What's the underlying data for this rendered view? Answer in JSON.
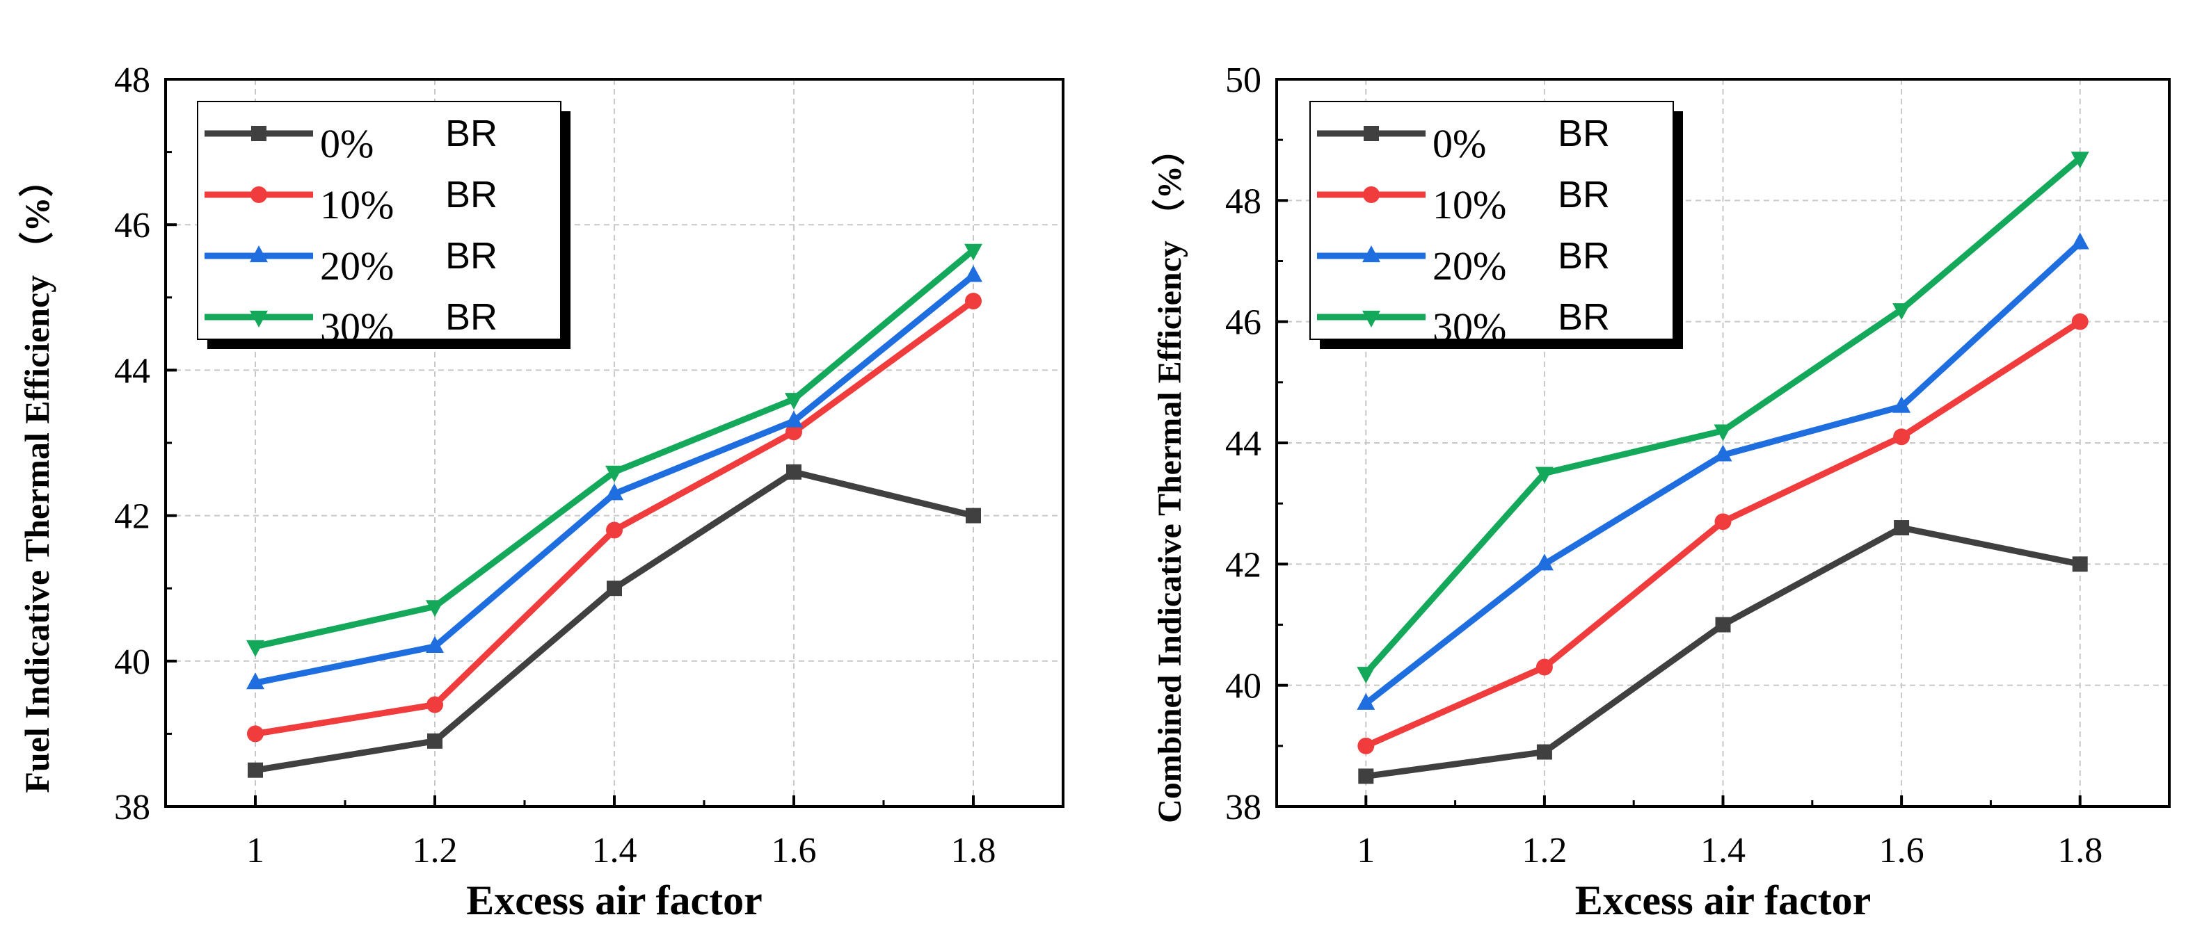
{
  "colors": {
    "series": [
      "#404040",
      "#f03c3c",
      "#1f6ee0",
      "#14a85a"
    ],
    "grid": "#c8c8c8"
  },
  "chart_data": [
    {
      "type": "line",
      "title": "",
      "xlabel": "Excess air factor",
      "ylabel": "Fuel Indicative Thermal Efficiency （%）",
      "x": [
        1,
        1.2,
        1.4,
        1.6,
        1.8
      ],
      "x_tick_labels": [
        "1",
        "1.2",
        "1.4",
        "1.6",
        "1.8"
      ],
      "xlim": [
        0.9,
        1.9
      ],
      "ylim": [
        38,
        48
      ],
      "y_ticks": [
        38,
        40,
        42,
        44,
        46,
        48
      ],
      "y_tick_labels": [
        "38",
        "40",
        "42",
        "44",
        "46",
        "48"
      ],
      "grid": true,
      "legend_position": "top-left",
      "series": [
        {
          "name": "0%",
          "suffix": "BR",
          "marker": "square",
          "values": [
            38.5,
            38.9,
            41.0,
            42.6,
            42.0
          ]
        },
        {
          "name": "10%",
          "suffix": "BR",
          "marker": "circle",
          "values": [
            39.0,
            39.4,
            41.8,
            43.15,
            44.95
          ]
        },
        {
          "name": "20%",
          "suffix": "BR",
          "marker": "triangle-up",
          "values": [
            39.7,
            40.2,
            42.3,
            43.3,
            45.3
          ]
        },
        {
          "name": "30%",
          "suffix": "BR",
          "marker": "triangle-down",
          "values": [
            40.2,
            40.75,
            42.6,
            43.6,
            45.65
          ]
        }
      ]
    },
    {
      "type": "line",
      "title": "",
      "xlabel": "Excess air factor",
      "ylabel": "Combined Indicative Thermal Efficiency （%）",
      "x": [
        1,
        1.2,
        1.4,
        1.6,
        1.8
      ],
      "x_tick_labels": [
        "1",
        "1.2",
        "1.4",
        "1.6",
        "1.8"
      ],
      "xlim": [
        0.9,
        1.9
      ],
      "ylim": [
        38,
        50
      ],
      "y_ticks": [
        38,
        40,
        42,
        44,
        46,
        48,
        50
      ],
      "y_tick_labels": [
        "38",
        "40",
        "42",
        "44",
        "46",
        "48",
        "50"
      ],
      "grid": true,
      "legend_position": "top-left",
      "series": [
        {
          "name": "0%",
          "suffix": "BR",
          "marker": "square",
          "values": [
            38.5,
            38.9,
            41.0,
            42.6,
            42.0
          ]
        },
        {
          "name": "10%",
          "suffix": "BR",
          "marker": "circle",
          "values": [
            39.0,
            40.3,
            42.7,
            44.1,
            46.0
          ]
        },
        {
          "name": "20%",
          "suffix": "BR",
          "marker": "triangle-up",
          "values": [
            39.7,
            42.0,
            43.8,
            44.6,
            47.3
          ]
        },
        {
          "name": "30%",
          "suffix": "BR",
          "marker": "triangle-down",
          "values": [
            40.2,
            43.5,
            44.2,
            46.2,
            48.7
          ]
        }
      ]
    }
  ]
}
